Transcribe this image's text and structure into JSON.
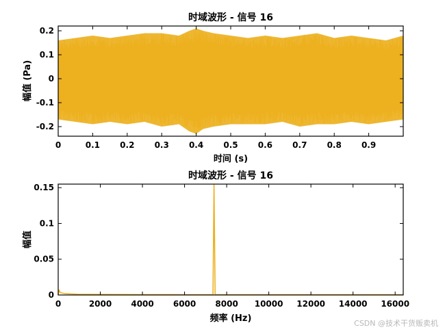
{
  "colors": {
    "signal": "#EDB120",
    "axis": "#000000",
    "background": "#FFFFFF"
  },
  "watermark": "CSDN @技术干货贩卖机",
  "chart_data": [
    {
      "type": "line",
      "title": "时域波形 - 信号 16",
      "xlabel": "时间 (s)",
      "ylabel": "幅值 (Pa)",
      "xlim": [
        0,
        1
      ],
      "ylim": [
        -0.24,
        0.22
      ],
      "xticks": [
        0,
        0.1,
        0.2,
        0.3,
        0.4,
        0.5,
        0.6,
        0.7,
        0.8,
        0.9
      ],
      "xtick_labels": [
        "0",
        "0.1",
        "0.2",
        "0.3",
        "0.4",
        "0.5",
        "0.6",
        "0.7",
        "0.8",
        "0.9"
      ],
      "yticks": [
        -0.2,
        -0.1,
        0,
        0.1,
        0.2
      ],
      "ytick_labels": [
        "-0.2",
        "-0.1",
        "0",
        "0.1",
        "0.2"
      ],
      "series": [
        {
          "x": [
            0,
            0.05,
            0.1,
            0.15,
            0.2,
            0.25,
            0.3,
            0.35,
            0.38,
            0.4,
            0.42,
            0.45,
            0.5,
            0.55,
            0.6,
            0.65,
            0.7,
            0.75,
            0.8,
            0.85,
            0.9,
            0.95,
            1.0
          ],
          "upper": [
            0.16,
            0.17,
            0.18,
            0.17,
            0.18,
            0.19,
            0.19,
            0.18,
            0.2,
            0.21,
            0.2,
            0.19,
            0.18,
            0.17,
            0.18,
            0.17,
            0.18,
            0.19,
            0.17,
            0.18,
            0.17,
            0.16,
            0.18
          ],
          "lower": [
            -0.17,
            -0.18,
            -0.19,
            -0.18,
            -0.19,
            -0.18,
            -0.2,
            -0.19,
            -0.22,
            -0.23,
            -0.21,
            -0.2,
            -0.19,
            -0.19,
            -0.19,
            -0.18,
            -0.2,
            -0.19,
            -0.19,
            -0.18,
            -0.19,
            -0.18,
            -0.17
          ]
        }
      ]
    },
    {
      "type": "line",
      "title": "时域波形 - 信号 16",
      "xlabel": "频率 (Hz)",
      "ylabel": "幅值",
      "xlim": [
        0,
        16384
      ],
      "ylim": [
        0,
        0.155
      ],
      "xticks": [
        0,
        2000,
        4000,
        6000,
        8000,
        10000,
        12000,
        14000,
        16000
      ],
      "xtick_labels": [
        "0",
        "2000",
        "4000",
        "6000",
        "8000",
        "10000",
        "12000",
        "14000",
        "16000"
      ],
      "yticks": [
        0,
        0.05,
        0.1,
        0.15
      ],
      "ytick_labels": [
        "0",
        "0.05",
        "0.1",
        "0.15"
      ],
      "series": [
        {
          "x": [
            0,
            40,
            80,
            150,
            300,
            600,
            1000,
            2000,
            3000,
            4000,
            5000,
            6000,
            7000,
            7350,
            7400,
            7450,
            7500,
            7550,
            8000,
            9000,
            10000,
            11000,
            12000,
            13000,
            14000,
            15000,
            16000,
            16384
          ],
          "y": [
            0.0,
            0.007,
            0.004,
            0.003,
            0.002,
            0.0015,
            0.001,
            0.0008,
            0.0007,
            0.0006,
            0.0006,
            0.0005,
            0.0005,
            0.0006,
            0.154,
            0.0006,
            0.0005,
            0.0005,
            0.0005,
            0.0005,
            0.0004,
            0.0005,
            0.0004,
            0.0004,
            0.0004,
            0.0004,
            0.0004,
            0.0004
          ]
        }
      ]
    }
  ]
}
